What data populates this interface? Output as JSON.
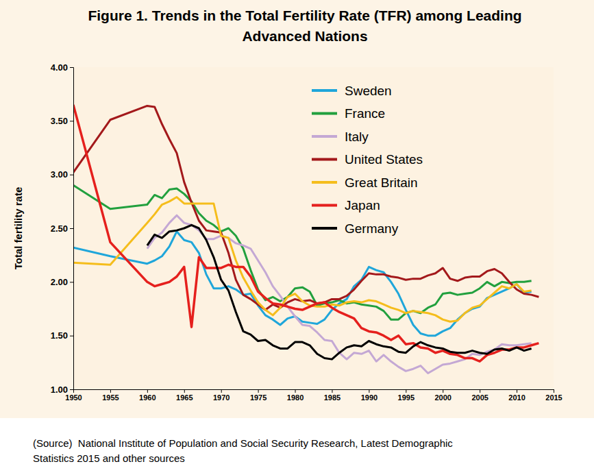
{
  "chart_data": {
    "type": "line",
    "title": [
      "Figure 1. Trends in the Total Fertility Rate (TFR) among Leading",
      "Advanced Nations"
    ],
    "ylabel": "Total fertility rate",
    "annotations": [
      {
        "text": [
          "(Source)  National Institute of Population and Social Security Research, Latest Demographic",
          "Statistics 2015 and other sources"
        ]
      }
    ],
    "x": [
      1950,
      1955,
      1960,
      1961,
      1962,
      1963,
      1964,
      1965,
      1966,
      1967,
      1968,
      1969,
      1970,
      1971,
      1972,
      1973,
      1974,
      1975,
      1976,
      1977,
      1978,
      1979,
      1980,
      1981,
      1982,
      1983,
      1984,
      1985,
      1986,
      1987,
      1988,
      1989,
      1990,
      1991,
      1992,
      1993,
      1994,
      1995,
      1996,
      1997,
      1998,
      1999,
      2000,
      2001,
      2002,
      2003,
      2004,
      2005,
      2006,
      2007,
      2008,
      2009,
      2010,
      2011,
      2012,
      2013
    ],
    "xlim": [
      1950,
      2015
    ],
    "xticks": [
      1950,
      1955,
      1960,
      1965,
      1970,
      1975,
      1980,
      1985,
      1990,
      1995,
      2000,
      2005,
      2010,
      2015
    ],
    "ylim": [
      1,
      4
    ],
    "yticks": [
      {
        "value": 1,
        "label": "1.00"
      },
      {
        "value": 1.5,
        "label": "1.50"
      },
      {
        "value": 2,
        "label": "2.00"
      },
      {
        "value": 2.5,
        "label": "2.50"
      },
      {
        "value": 3,
        "label": "3.00"
      },
      {
        "value": 3.5,
        "label": "3.50"
      },
      {
        "value": 4,
        "label": "4.00"
      }
    ],
    "grid": false,
    "legend": "upper right",
    "series": [
      {
        "name": "Sweden",
        "color": "#1fa6da",
        "values": [
          2.32,
          2.24,
          2.17,
          2.2,
          2.24,
          2.33,
          2.47,
          2.39,
          2.37,
          2.27,
          2.07,
          1.94,
          1.94,
          1.96,
          1.93,
          1.88,
          1.89,
          1.78,
          1.69,
          1.65,
          1.6,
          1.66,
          1.68,
          1.63,
          1.62,
          1.61,
          1.65,
          1.74,
          1.8,
          1.84,
          1.96,
          2.02,
          2.14,
          2.11,
          2.09,
          2.0,
          1.89,
          1.74,
          1.6,
          1.52,
          1.5,
          1.5,
          1.54,
          1.57,
          1.65,
          1.71,
          1.75,
          1.77,
          1.85,
          1.88,
          1.91,
          1.94,
          1.98,
          1.9,
          1.91,
          null
        ]
      },
      {
        "name": "France",
        "color": "#22a03e",
        "values": [
          2.9,
          2.68,
          2.72,
          2.81,
          2.78,
          2.86,
          2.87,
          2.82,
          2.75,
          2.64,
          2.57,
          2.53,
          2.47,
          2.5,
          2.43,
          2.31,
          2.11,
          1.93,
          1.83,
          1.86,
          1.82,
          1.86,
          1.94,
          1.95,
          1.91,
          1.78,
          1.8,
          1.81,
          1.83,
          1.8,
          1.81,
          1.79,
          1.78,
          1.77,
          1.73,
          1.65,
          1.65,
          1.71,
          1.73,
          1.71,
          1.76,
          1.79,
          1.89,
          1.9,
          1.88,
          1.89,
          1.9,
          1.94,
          2.0,
          1.96,
          2.0,
          1.99,
          2.0,
          2.0,
          2.01,
          null
        ]
      },
      {
        "name": "Italy",
        "color": "#c4a8d4",
        "values": [
          null,
          null,
          2.31,
          2.41,
          2.46,
          2.55,
          2.62,
          2.55,
          2.53,
          2.48,
          2.4,
          2.4,
          2.43,
          2.41,
          2.36,
          2.34,
          2.31,
          2.2,
          2.09,
          1.96,
          1.87,
          1.77,
          1.68,
          1.6,
          1.59,
          1.53,
          1.46,
          1.45,
          1.34,
          1.28,
          1.34,
          1.33,
          1.36,
          1.26,
          1.32,
          1.26,
          1.21,
          1.17,
          1.19,
          1.22,
          1.15,
          1.19,
          1.23,
          1.24,
          1.26,
          1.28,
          1.33,
          1.32,
          1.35,
          1.37,
          1.42,
          1.41,
          1.41,
          1.42,
          1.43,
          null
        ]
      },
      {
        "name": "United States",
        "color": "#a3191b",
        "values": [
          3.02,
          3.51,
          3.64,
          3.63,
          3.47,
          3.33,
          3.2,
          2.93,
          2.74,
          2.57,
          2.48,
          2.47,
          2.46,
          2.27,
          2.02,
          1.88,
          1.84,
          1.79,
          1.74,
          1.79,
          1.76,
          1.81,
          1.84,
          1.82,
          1.83,
          1.8,
          1.81,
          1.84,
          1.84,
          1.87,
          1.93,
          2.01,
          2.08,
          2.07,
          2.07,
          2.05,
          2.04,
          2.02,
          2.03,
          2.03,
          2.06,
          2.08,
          2.13,
          2.03,
          2.01,
          2.04,
          2.05,
          2.05,
          2.1,
          2.12,
          2.08,
          2.0,
          1.93,
          1.89,
          1.88,
          1.86
        ]
      },
      {
        "name": "Great Britain",
        "color": "#f5bd1c",
        "values": [
          2.18,
          2.16,
          2.55,
          2.63,
          2.72,
          2.75,
          2.79,
          2.73,
          2.73,
          2.73,
          2.73,
          2.73,
          2.43,
          2.41,
          2.2,
          2.04,
          1.92,
          1.81,
          1.74,
          1.69,
          1.76,
          1.86,
          1.89,
          1.82,
          1.78,
          1.77,
          1.77,
          1.79,
          1.78,
          1.81,
          1.82,
          1.81,
          1.83,
          1.82,
          1.79,
          1.76,
          1.74,
          1.71,
          1.73,
          1.72,
          1.71,
          1.69,
          1.65,
          1.63,
          1.64,
          1.71,
          1.76,
          1.78,
          1.84,
          1.9,
          1.96,
          1.94,
          1.98,
          1.91,
          1.92,
          null
        ]
      },
      {
        "name": "Japan",
        "color": "#e5201d",
        "values": [
          3.65,
          2.37,
          2.0,
          1.96,
          1.98,
          2.0,
          2.05,
          2.14,
          1.58,
          2.23,
          2.13,
          2.13,
          2.13,
          2.16,
          2.14,
          2.14,
          2.05,
          1.91,
          1.85,
          1.8,
          1.79,
          1.77,
          1.75,
          1.74,
          1.77,
          1.8,
          1.81,
          1.76,
          1.72,
          1.69,
          1.66,
          1.57,
          1.54,
          1.53,
          1.5,
          1.46,
          1.5,
          1.42,
          1.43,
          1.39,
          1.38,
          1.34,
          1.36,
          1.33,
          1.32,
          1.29,
          1.29,
          1.26,
          1.32,
          1.34,
          1.37,
          1.37,
          1.39,
          1.39,
          1.41,
          1.43
        ]
      },
      {
        "name": "Germany",
        "color": "#000000",
        "values": [
          null,
          null,
          2.34,
          2.44,
          2.41,
          2.47,
          2.48,
          2.5,
          2.53,
          2.5,
          2.39,
          2.23,
          2.02,
          1.92,
          1.72,
          1.54,
          1.51,
          1.45,
          1.46,
          1.41,
          1.38,
          1.38,
          1.44,
          1.44,
          1.41,
          1.33,
          1.29,
          1.28,
          1.34,
          1.39,
          1.41,
          1.4,
          1.45,
          1.42,
          1.4,
          1.39,
          1.35,
          1.34,
          1.4,
          1.44,
          1.41,
          1.39,
          1.38,
          1.35,
          1.34,
          1.34,
          1.36,
          1.34,
          1.33,
          1.37,
          1.38,
          1.36,
          1.39,
          1.36,
          1.38,
          null
        ]
      }
    ]
  }
}
